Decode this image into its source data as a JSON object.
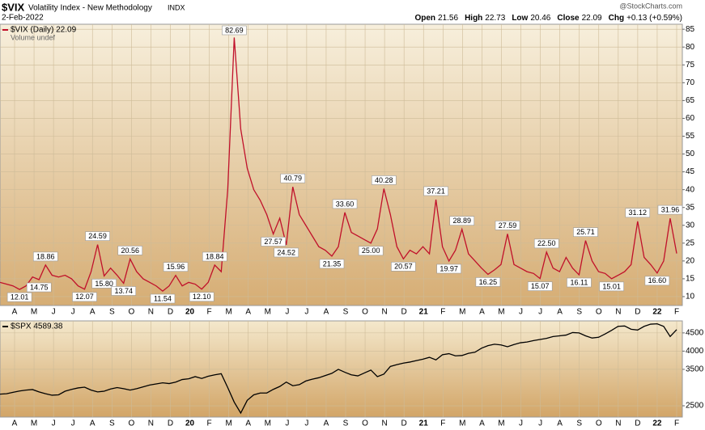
{
  "header": {
    "symbol": "$VIX",
    "name": "Volatility Index - New Methodology",
    "exchange": "INDX",
    "date": "2-Feb-2022",
    "source": "@StockCharts.com",
    "quote": [
      {
        "label": "Open",
        "value": "21.56"
      },
      {
        "label": "High",
        "value": "22.73"
      },
      {
        "label": "Low",
        "value": "20.46"
      },
      {
        "label": "Close",
        "value": "22.09"
      },
      {
        "label": "Chg",
        "value": "+0.13 (+0.59%)"
      }
    ]
  },
  "chart_data": [
    {
      "type": "line",
      "note_text": "Volume undef",
      "xtick_labels": [
        "A",
        "M",
        "J",
        "J",
        "A",
        "S",
        "O",
        "N",
        "D",
        "20",
        "F",
        "M",
        "A",
        "M",
        "J",
        "J",
        "A",
        "S",
        "O",
        "N",
        "D",
        "21",
        "F",
        "M",
        "A",
        "M",
        "J",
        "J",
        "A",
        "S",
        "O",
        "N",
        "D",
        "22",
        "F"
      ],
      "ylim": [
        7.5,
        86.4
      ],
      "yticks": [
        10,
        15,
        20,
        25,
        30,
        35,
        40,
        45,
        50,
        55,
        60,
        65,
        70,
        75,
        80,
        85
      ],
      "grid": true,
      "series": [
        {
          "name": "$VIX (Daily) 22.09",
          "color": "#c0102a",
          "values": [
            14,
            13.5,
            13,
            12.01,
            13,
            15.5,
            14.75,
            18.86,
            16,
            15.5,
            16,
            15,
            13,
            12.07,
            17,
            24.59,
            15.8,
            18,
            16,
            13.74,
            20.56,
            17,
            15,
            14,
            13,
            11.54,
            13,
            15.96,
            13,
            14,
            13.5,
            12.1,
            14,
            18.84,
            17,
            40,
            82.69,
            57,
            46,
            40,
            37,
            33,
            27.57,
            32,
            24.52,
            40.79,
            33,
            30,
            27,
            24,
            23,
            21.35,
            24,
            33.6,
            28,
            27,
            26,
            25,
            29,
            40.28,
            33,
            24,
            20.57,
            23,
            22,
            24,
            22,
            37.21,
            24,
            19.97,
            23,
            28.89,
            22,
            20,
            18,
            16.25,
            17.5,
            19,
            27.59,
            19,
            18,
            17,
            16.5,
            15.07,
            22.5,
            18,
            17,
            21,
            18,
            16.11,
            25.71,
            20,
            17,
            16.5,
            15.01,
            16,
            17,
            19,
            31.12,
            21,
            19,
            16.6,
            20,
            31.96,
            22.09
          ],
          "value_labels": [
            null,
            null,
            null,
            "12.01",
            null,
            null,
            "14.75",
            "18.86",
            null,
            null,
            null,
            null,
            null,
            "12.07",
            null,
            "24.59",
            "15.80",
            null,
            null,
            "13.74",
            "20.56",
            null,
            null,
            null,
            null,
            "11.54",
            null,
            "15.96",
            null,
            null,
            null,
            "12.10",
            null,
            "18.84",
            null,
            null,
            "82.69",
            null,
            null,
            null,
            null,
            null,
            "27.57",
            null,
            "24.52",
            "40.79",
            null,
            null,
            null,
            null,
            null,
            "21.35",
            null,
            "33.60",
            null,
            null,
            null,
            "25.00",
            null,
            "40.28",
            null,
            null,
            "20.57",
            null,
            null,
            null,
            null,
            "37.21",
            null,
            "19.97",
            null,
            "28.89",
            null,
            null,
            null,
            "16.25",
            null,
            null,
            "27.59",
            null,
            null,
            null,
            null,
            "15.07",
            "22.50",
            null,
            null,
            null,
            null,
            "16.11",
            "25.71",
            null,
            null,
            null,
            "15.01",
            null,
            null,
            null,
            "31.12",
            null,
            null,
            "16.60",
            null,
            "31.96",
            null
          ]
        }
      ]
    },
    {
      "type": "line",
      "xtick_labels": [
        "A",
        "M",
        "J",
        "J",
        "A",
        "S",
        "O",
        "N",
        "D",
        "20",
        "F",
        "M",
        "A",
        "M",
        "J",
        "J",
        "A",
        "S",
        "O",
        "N",
        "D",
        "21",
        "F",
        "M",
        "A",
        "M",
        "J",
        "J",
        "A",
        "S",
        "O",
        "N",
        "D",
        "22",
        "F"
      ],
      "ylim": [
        2190,
        4830
      ],
      "yticks": [
        2500,
        3500,
        4000,
        4500
      ],
      "grid": true,
      "series": [
        {
          "name": "$SPX 4589.38",
          "color": "#000000",
          "values": [
            2820,
            2830,
            2870,
            2905,
            2930,
            2945,
            2880,
            2830,
            2790,
            2800,
            2900,
            2950,
            2990,
            3010,
            2930,
            2880,
            2900,
            2960,
            3000,
            2970,
            2930,
            2970,
            3020,
            3070,
            3100,
            3130,
            3110,
            3150,
            3220,
            3240,
            3300,
            3250,
            3310,
            3350,
            3380,
            3000,
            2600,
            2300,
            2650,
            2800,
            2850,
            2850,
            2950,
            3030,
            3150,
            3050,
            3080,
            3180,
            3230,
            3270,
            3330,
            3390,
            3500,
            3420,
            3350,
            3320,
            3400,
            3480,
            3300,
            3370,
            3580,
            3630,
            3670,
            3700,
            3740,
            3780,
            3830,
            3760,
            3900,
            3930,
            3870,
            3880,
            3940,
            3970,
            4080,
            4150,
            4190,
            4170,
            4120,
            4180,
            4230,
            4250,
            4290,
            4320,
            4350,
            4400,
            4420,
            4440,
            4510,
            4500,
            4420,
            4360,
            4380,
            4470,
            4570,
            4680,
            4690,
            4600,
            4580,
            4680,
            4740,
            4750,
            4680,
            4400,
            4589.38
          ]
        }
      ]
    }
  ]
}
